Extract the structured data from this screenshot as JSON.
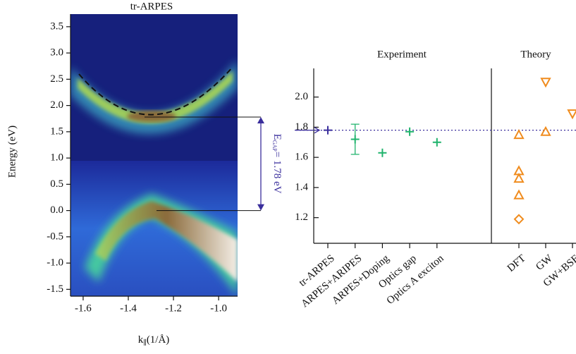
{
  "chart_data": [
    {
      "type": "image",
      "title": "tr-ARPES",
      "xlabel": {
        "symbol": "k",
        "subscript": "∥",
        "unit": "(1/Å)"
      },
      "ylabel": "Energy (eV)",
      "xlim": [
        -1.656,
        -0.916
      ],
      "ylim": [
        -1.63,
        3.74
      ],
      "xticks": [
        -1.6,
        -1.4,
        -1.2,
        {
          "value": -1,
          "label": "-1.0"
        }
      ],
      "yticks": [
        -1.5,
        {
          "value": -1,
          "label": "-1.0"
        },
        -0.5,
        {
          "value": 0,
          "label": "0.0"
        },
        0.5,
        {
          "value": 1,
          "label": "1.0"
        },
        1.5,
        {
          "value": 2,
          "label": "2.0"
        },
        2.5,
        {
          "value": 3,
          "label": "3.0"
        },
        3.5
      ],
      "gap_edges": [
        0,
        1.78
      ],
      "annotation": {
        "symbol": "E",
        "subscript": "GAP",
        "text": "= 1.78 eV"
      }
    },
    {
      "type": "scatter",
      "groups": [
        "Experiment",
        "Theory"
      ],
      "categories": [
        "tr-ARPES",
        "ARPES+ARIPES",
        "ARPES+Doping",
        "Optics gap",
        "Optics A exciton",
        "DFT",
        "GW",
        "GW+BSE"
      ],
      "ylim": [
        1.03,
        2.19
      ],
      "yticks": [
        1.2,
        1.4,
        1.6,
        1.8,
        {
          "value": 2,
          "label": "2.0"
        }
      ],
      "reference_line": 1.78,
      "series": [
        {
          "color": "#3a2e9c",
          "marker": "plus",
          "values": [
            1.78,
            null,
            null,
            null,
            null,
            null,
            null,
            null
          ]
        },
        {
          "color": "#1fb36c",
          "marker": "plus",
          "values": [
            null,
            1.72,
            1.63,
            1.77,
            1.7,
            null,
            null,
            null
          ],
          "errors": [
            null,
            0.1,
            null,
            null,
            null,
            null,
            null,
            null
          ]
        },
        {
          "color": "#f08c1e",
          "marker": "triangle-up",
          "values": [
            null,
            null,
            null,
            null,
            null,
            1.75,
            1.77,
            null
          ]
        },
        {
          "color": "#f08c1e",
          "marker": "triangle-up",
          "values": [
            null,
            null,
            null,
            null,
            null,
            1.51,
            null,
            null
          ]
        },
        {
          "color": "#f08c1e",
          "marker": "triangle-up",
          "values": [
            null,
            null,
            null,
            null,
            null,
            1.46,
            null,
            null
          ]
        },
        {
          "color": "#f08c1e",
          "marker": "triangle-up",
          "values": [
            null,
            null,
            null,
            null,
            null,
            1.35,
            null,
            null
          ]
        },
        {
          "color": "#f08c1e",
          "marker": "diamond",
          "values": [
            null,
            null,
            null,
            null,
            null,
            1.19,
            null,
            null
          ]
        },
        {
          "color": "#f08c1e",
          "marker": "triangle-down",
          "values": [
            null,
            null,
            null,
            null,
            null,
            null,
            2.1,
            1.89
          ]
        }
      ]
    }
  ]
}
